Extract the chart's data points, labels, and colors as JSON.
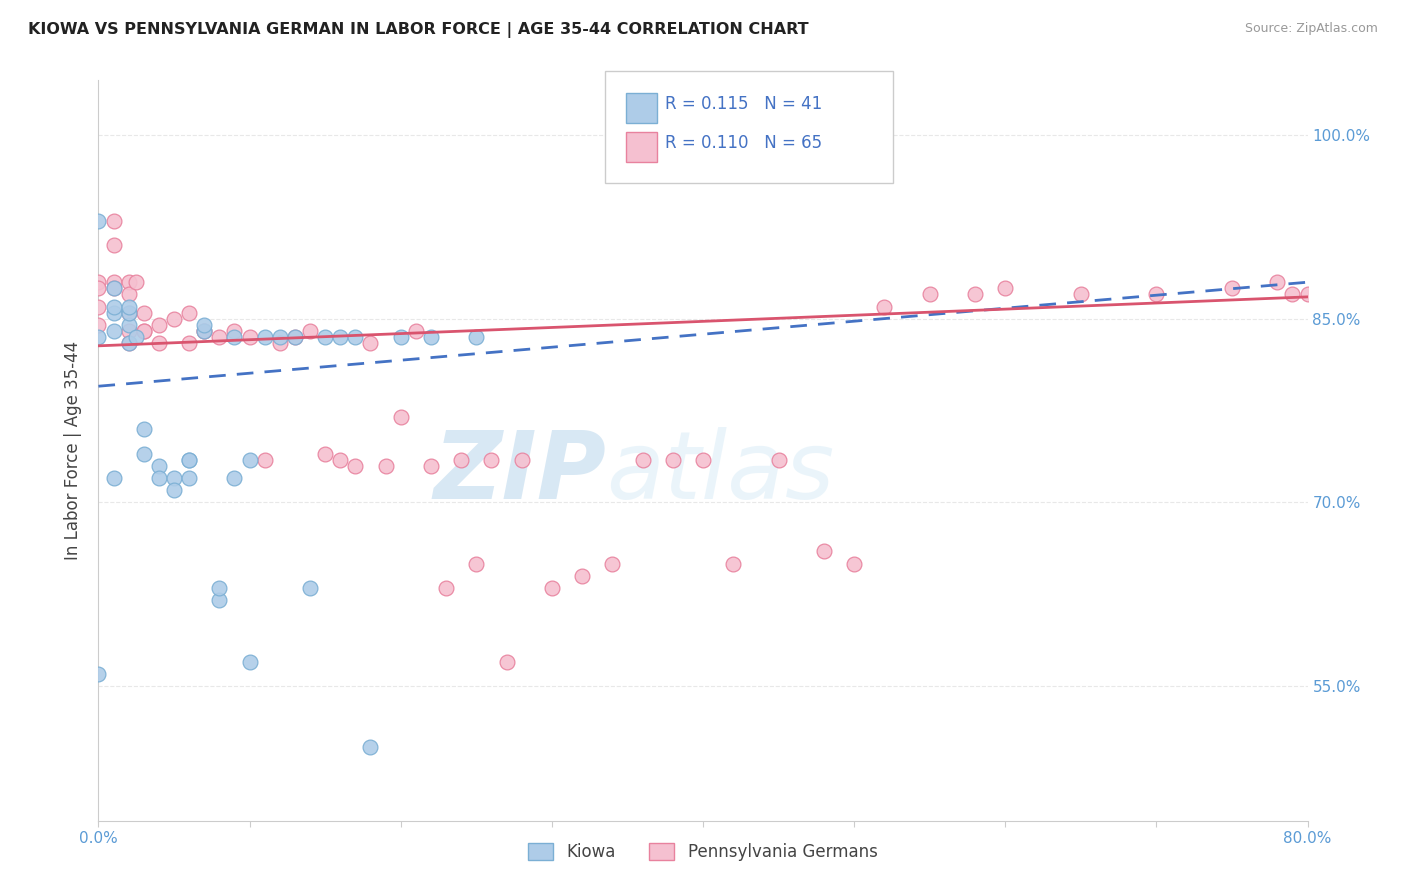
{
  "title": "KIOWA VS PENNSYLVANIA GERMAN IN LABOR FORCE | AGE 35-44 CORRELATION CHART",
  "source": "Source: ZipAtlas.com",
  "ylabel": "In Labor Force | Age 35-44",
  "x_min": 0.0,
  "x_max": 0.8,
  "y_min": 0.44,
  "y_max": 1.045,
  "x_ticks": [
    0.0,
    0.1,
    0.2,
    0.3,
    0.4,
    0.5,
    0.6,
    0.7,
    0.8
  ],
  "y_ticks_right": [
    0.55,
    0.7,
    0.85,
    1.0
  ],
  "y_tick_labels_right": [
    "55.0%",
    "70.0%",
    "85.0%",
    "100.0%"
  ],
  "background_color": "#ffffff",
  "grid_color": "#e8e8e8",
  "kiowa_color": "#aecce8",
  "kiowa_edge_color": "#7bafd4",
  "pa_german_color": "#f5c0d0",
  "pa_german_edge_color": "#e8829e",
  "kiowa_line_color": "#4472c4",
  "pa_german_line_color": "#d9546e",
  "kiowa_x": [
    0.0,
    0.0,
    0.0,
    0.01,
    0.01,
    0.01,
    0.01,
    0.01,
    0.02,
    0.02,
    0.02,
    0.02,
    0.025,
    0.03,
    0.03,
    0.04,
    0.04,
    0.05,
    0.05,
    0.06,
    0.06,
    0.06,
    0.07,
    0.07,
    0.08,
    0.08,
    0.09,
    0.09,
    0.1,
    0.1,
    0.11,
    0.12,
    0.13,
    0.14,
    0.15,
    0.16,
    0.17,
    0.18,
    0.2,
    0.22,
    0.25
  ],
  "kiowa_y": [
    0.93,
    0.835,
    0.56,
    0.84,
    0.855,
    0.86,
    0.875,
    0.72,
    0.83,
    0.845,
    0.855,
    0.86,
    0.835,
    0.76,
    0.74,
    0.73,
    0.72,
    0.72,
    0.71,
    0.72,
    0.735,
    0.735,
    0.84,
    0.845,
    0.62,
    0.63,
    0.835,
    0.72,
    0.57,
    0.735,
    0.835,
    0.835,
    0.835,
    0.63,
    0.835,
    0.835,
    0.835,
    0.5,
    0.835,
    0.835,
    0.835
  ],
  "pa_x": [
    0.0,
    0.0,
    0.0,
    0.0,
    0.01,
    0.01,
    0.01,
    0.01,
    0.02,
    0.02,
    0.02,
    0.02,
    0.02,
    0.025,
    0.03,
    0.03,
    0.03,
    0.04,
    0.04,
    0.05,
    0.06,
    0.06,
    0.07,
    0.07,
    0.08,
    0.09,
    0.1,
    0.11,
    0.12,
    0.13,
    0.14,
    0.15,
    0.16,
    0.17,
    0.18,
    0.19,
    0.2,
    0.21,
    0.22,
    0.23,
    0.24,
    0.25,
    0.26,
    0.27,
    0.28,
    0.3,
    0.32,
    0.34,
    0.36,
    0.38,
    0.4,
    0.42,
    0.45,
    0.48,
    0.5,
    0.52,
    0.55,
    0.58,
    0.6,
    0.65,
    0.7,
    0.75,
    0.78,
    0.79,
    0.8
  ],
  "pa_y": [
    0.88,
    0.875,
    0.86,
    0.845,
    0.93,
    0.91,
    0.88,
    0.875,
    0.88,
    0.87,
    0.855,
    0.84,
    0.83,
    0.88,
    0.855,
    0.84,
    0.84,
    0.845,
    0.83,
    0.85,
    0.855,
    0.83,
    0.84,
    0.84,
    0.835,
    0.84,
    0.835,
    0.735,
    0.83,
    0.835,
    0.84,
    0.74,
    0.735,
    0.73,
    0.83,
    0.73,
    0.77,
    0.84,
    0.73,
    0.63,
    0.735,
    0.65,
    0.735,
    0.57,
    0.735,
    0.63,
    0.64,
    0.65,
    0.735,
    0.735,
    0.735,
    0.65,
    0.735,
    0.66,
    0.65,
    0.86,
    0.87,
    0.87,
    0.875,
    0.87,
    0.87,
    0.875,
    0.88,
    0.87,
    0.87
  ],
  "kiowa_trendline": [
    0.795,
    0.88
  ],
  "pa_trendline": [
    0.828,
    0.868
  ],
  "watermark_text": "ZIP",
  "watermark_text2": "atlas",
  "marker_size": 9
}
